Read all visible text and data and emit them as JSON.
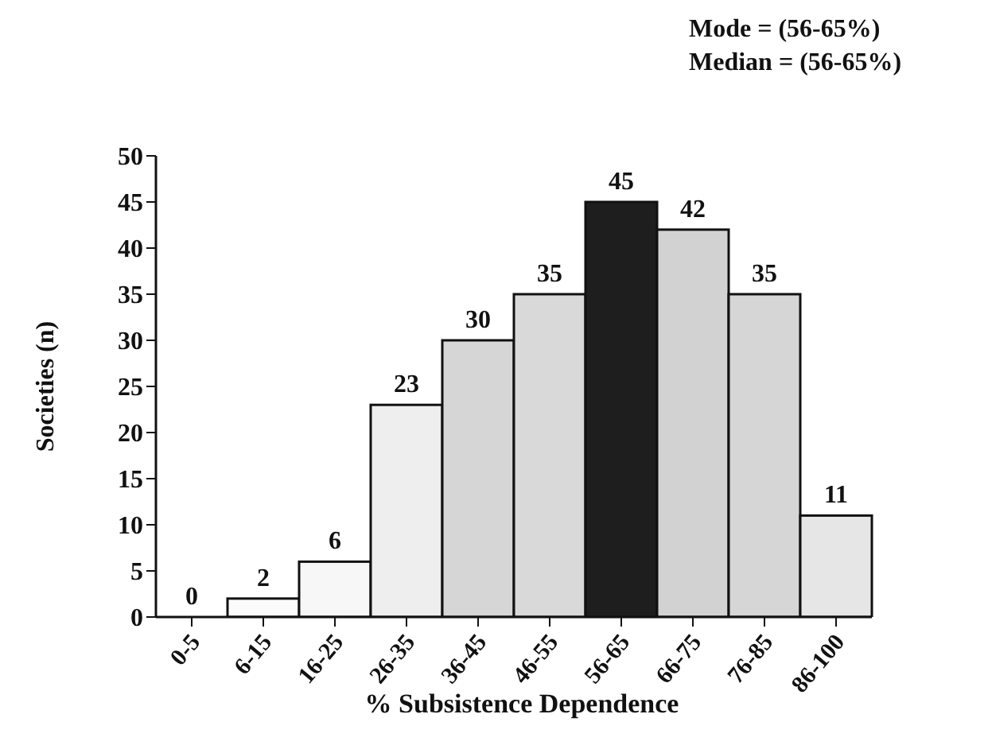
{
  "chart_data": {
    "type": "bar",
    "xlabel": "% Subsistence Dependence",
    "ylabel": "Societies (n)",
    "annotations": [
      "Mode = (56-65%)",
      "Median = (56-65%)"
    ],
    "categories": [
      "0-5",
      "6-15",
      "16-25",
      "26-35",
      "36-45",
      "46-55",
      "56-65",
      "66-75",
      "76-85",
      "86-100"
    ],
    "values": [
      0,
      2,
      6,
      23,
      30,
      35,
      45,
      42,
      35,
      11
    ],
    "colors": [
      "#ffffff",
      "#fbfbfb",
      "#f7f7f7",
      "#eeeeee",
      "#d6d6d6",
      "#d9d9d9",
      "#1e1e1e",
      "#d2d2d2",
      "#d6d6d6",
      "#e6e6e6"
    ],
    "ylim": [
      0,
      50
    ],
    "yticks": [
      0,
      5,
      10,
      15,
      20,
      25,
      30,
      35,
      40,
      45,
      50
    ],
    "data_labels": true,
    "grid": false
  }
}
